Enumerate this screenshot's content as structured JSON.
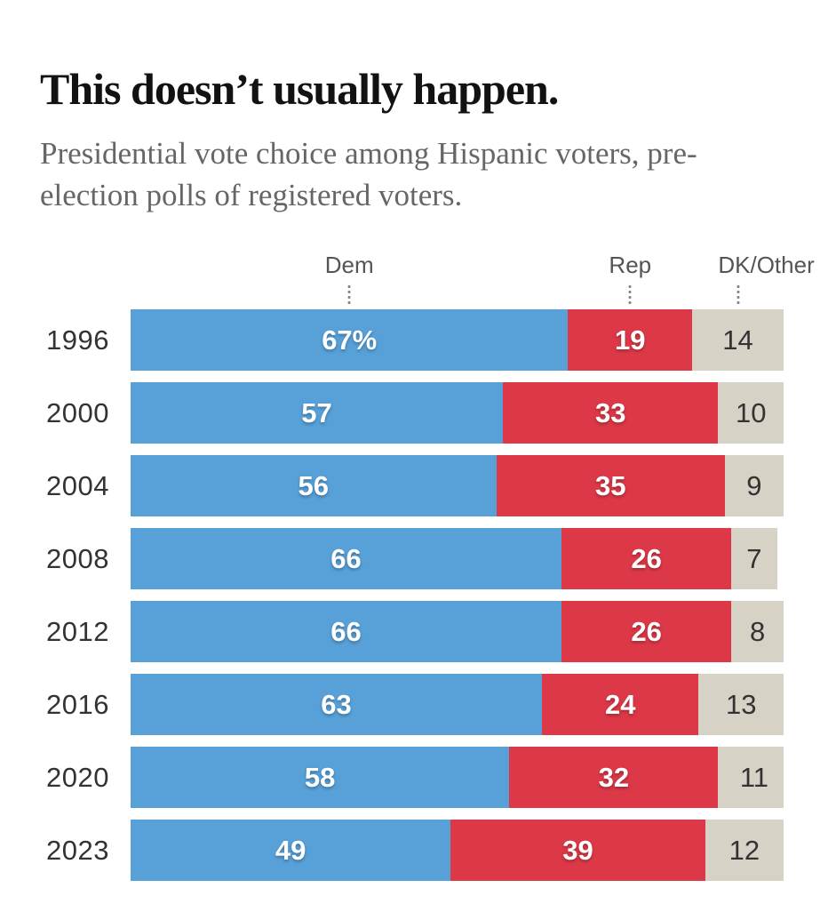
{
  "header": {
    "title": "This doesn’t usually happen.",
    "subtitle": "Presidential vote choice among Hispanic voters, pre-election polls of registered voters."
  },
  "colors": {
    "dem": "#57a0d8",
    "rep": "#dc3847",
    "dk_other": "#d6d2c6",
    "title_text": "#121212",
    "subtitle_text": "#666666",
    "column_label_text": "#555555",
    "year_text": "#333333",
    "bar_label_light": "#ffffff",
    "bar_label_dark": "#333333",
    "tick_dot": "#7d7d7d"
  },
  "chart_data": {
    "type": "bar",
    "variant": "horizontal-stacked",
    "title": "This doesn’t usually happen.",
    "subtitle": "Presidential vote choice among Hispanic voters, pre-election polls of registered voters.",
    "categories": [
      "1996",
      "2000",
      "2004",
      "2008",
      "2012",
      "2016",
      "2020",
      "2023"
    ],
    "series": [
      {
        "name": "Dem",
        "color": "#57a0d8",
        "values": [
          67,
          57,
          56,
          66,
          66,
          63,
          58,
          49
        ]
      },
      {
        "name": "Rep",
        "color": "#dc3847",
        "values": [
          19,
          33,
          35,
          26,
          26,
          24,
          32,
          39
        ]
      },
      {
        "name": "DK/Other",
        "color": "#d6d2c6",
        "values": [
          14,
          10,
          9,
          7,
          8,
          13,
          11,
          12
        ]
      }
    ],
    "value_labels": [
      [
        "67%",
        "19",
        "14"
      ],
      [
        "57",
        "33",
        "10"
      ],
      [
        "56",
        "35",
        "9"
      ],
      [
        "66",
        "26",
        "7"
      ],
      [
        "66",
        "26",
        "8"
      ],
      [
        "63",
        "24",
        "13"
      ],
      [
        "58",
        "32",
        "11"
      ],
      [
        "49",
        "39",
        "12"
      ]
    ],
    "series_header_labels": [
      "Dem",
      "Rep",
      "DK/Other"
    ],
    "xlim": [
      0,
      100
    ],
    "unit": "percent",
    "grid": false,
    "legend_position": "top"
  }
}
